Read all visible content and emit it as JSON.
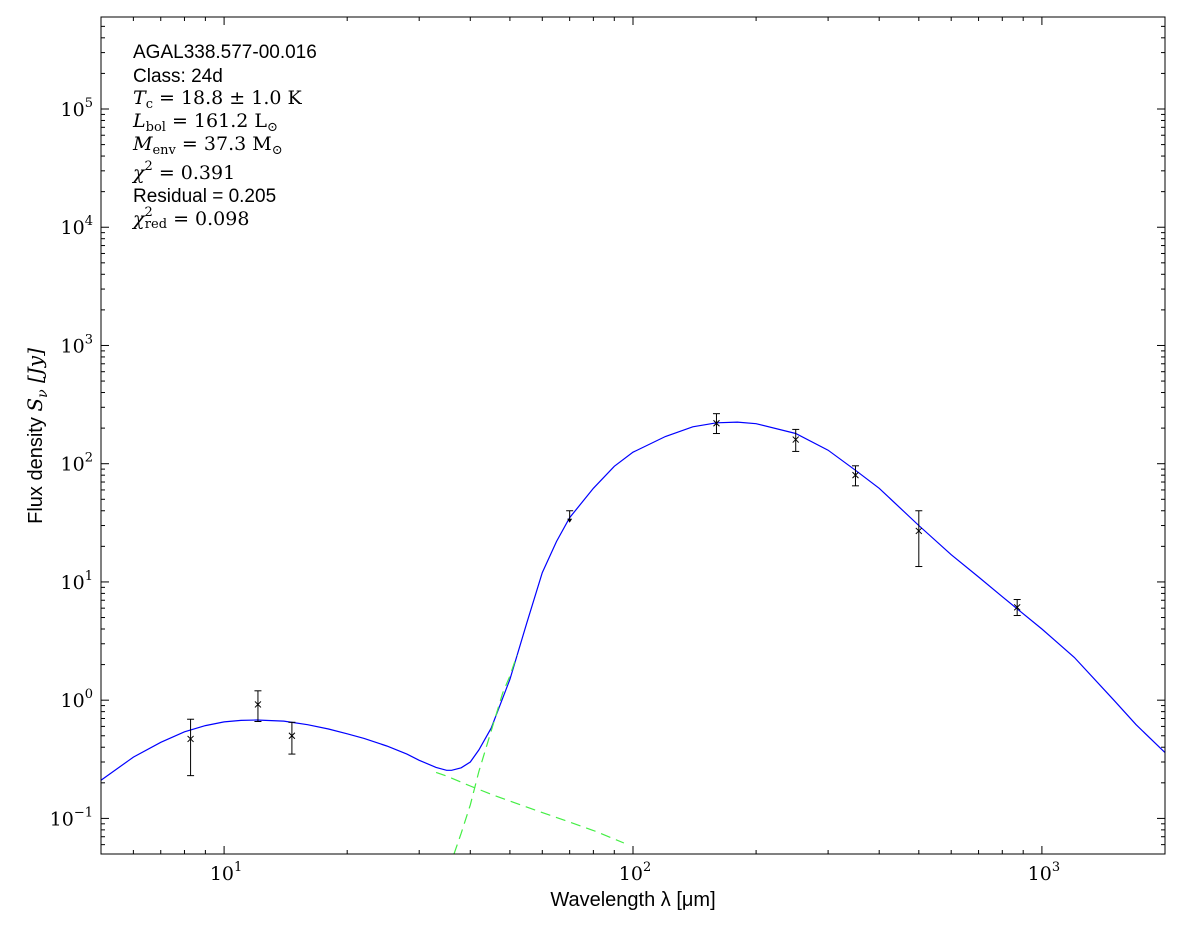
{
  "chart_data": {
    "type": "scatter",
    "xscale": "log",
    "yscale": "log",
    "xlim": [
      5,
      2000
    ],
    "ylim": [
      0.05,
      600000
    ],
    "xlabel": "Wavelength λ [μm]",
    "ylabel_prefix": "Flux density ",
    "ylabel_var": "S",
    "ylabel_sub": "ν",
    "ylabel_unit": " [Jy]",
    "x_ticks": [
      {
        "value": 10,
        "base": "10",
        "exp": "1"
      },
      {
        "value": 100,
        "base": "10",
        "exp": "2"
      },
      {
        "value": 1000,
        "base": "10",
        "exp": "3"
      }
    ],
    "y_ticks": [
      {
        "value": 0.1,
        "base": "10",
        "exp": "−1"
      },
      {
        "value": 1,
        "base": "10",
        "exp": "0"
      },
      {
        "value": 10,
        "base": "10",
        "exp": "1"
      },
      {
        "value": 100,
        "base": "10",
        "exp": "2"
      },
      {
        "value": 1000,
        "base": "10",
        "exp": "3"
      },
      {
        "value": 10000,
        "base": "10",
        "exp": "4"
      },
      {
        "value": 100000,
        "base": "10",
        "exp": "5"
      }
    ],
    "annotation": {
      "source": "AGAL338.577-00.016",
      "class": "Class: 24d",
      "tc": {
        "sym": "T",
        "sub": "c",
        "text": " = 18.8 ± 1.0 K"
      },
      "lbol": {
        "sym": "L",
        "sub": "bol",
        "text": " = 161.2 L",
        "sub2": "⊙"
      },
      "menv": {
        "sym": "M",
        "sub": "env",
        "text": " = 37.3 M",
        "sub2": "⊙"
      },
      "chi2": {
        "sym": "χ",
        "sup": "2",
        "text": " = 0.391"
      },
      "residual": "Residual = 0.205",
      "chi2red": {
        "sym": "χ",
        "sup": "2",
        "sub": "red",
        "text": " = 0.098"
      }
    },
    "points": [
      {
        "x": 8.28,
        "y": 0.47,
        "ylo": 0.23,
        "yhi": 0.69
      },
      {
        "x": 12.1,
        "y": 0.92,
        "ylo": 0.66,
        "yhi": 1.2
      },
      {
        "x": 14.65,
        "y": 0.5,
        "ylo": 0.35,
        "yhi": 0.65
      },
      {
        "x": 160,
        "y": 220,
        "ylo": 180,
        "yhi": 265
      },
      {
        "x": 250,
        "y": 160,
        "ylo": 127,
        "yhi": 195
      },
      {
        "x": 350,
        "y": 80,
        "ylo": 65,
        "yhi": 96
      },
      {
        "x": 500,
        "y": 27,
        "ylo": 13.5,
        "yhi": 40
      },
      {
        "x": 870,
        "y": 6.1,
        "ylo": 5.2,
        "yhi": 7.1
      }
    ],
    "upper_limits": [
      {
        "x": 70,
        "y": 40
      }
    ],
    "series": [
      {
        "type": "line",
        "color": "#0000ff",
        "dash": "solid",
        "points": [
          [
            5,
            0.21
          ],
          [
            6,
            0.33
          ],
          [
            7,
            0.44
          ],
          [
            8,
            0.54
          ],
          [
            9,
            0.61
          ],
          [
            10,
            0.655
          ],
          [
            11,
            0.675
          ],
          [
            12,
            0.68
          ],
          [
            14,
            0.665
          ],
          [
            16,
            0.62
          ],
          [
            18,
            0.57
          ],
          [
            20,
            0.52
          ],
          [
            22,
            0.475
          ],
          [
            25,
            0.41
          ],
          [
            28,
            0.35
          ],
          [
            30,
            0.31
          ],
          [
            33,
            0.27
          ],
          [
            35,
            0.255
          ],
          [
            36,
            0.255
          ],
          [
            38,
            0.268
          ],
          [
            40,
            0.3
          ],
          [
            42,
            0.38
          ],
          [
            45,
            0.58
          ],
          [
            50,
            1.5
          ],
          [
            55,
            4.5
          ],
          [
            60,
            12
          ],
          [
            65,
            22
          ],
          [
            70,
            35
          ],
          [
            80,
            62
          ],
          [
            90,
            95
          ],
          [
            100,
            125
          ],
          [
            120,
            170
          ],
          [
            140,
            205
          ],
          [
            160,
            222
          ],
          [
            180,
            225
          ],
          [
            200,
            218
          ],
          [
            250,
            180
          ],
          [
            300,
            130
          ],
          [
            350,
            88
          ],
          [
            400,
            62
          ],
          [
            500,
            30
          ],
          [
            600,
            17
          ],
          [
            700,
            11
          ],
          [
            800,
            7.5
          ],
          [
            1000,
            4.0
          ],
          [
            1200,
            2.3
          ],
          [
            1500,
            1.0
          ],
          [
            1700,
            0.62
          ],
          [
            2000,
            0.36
          ]
        ]
      },
      {
        "type": "line",
        "color": "#44ee44",
        "dash": "dashed",
        "points": [
          [
            33,
            0.245
          ],
          [
            35,
            0.228
          ],
          [
            40,
            0.188
          ],
          [
            45,
            0.16
          ],
          [
            50,
            0.14
          ],
          [
            60,
            0.112
          ],
          [
            70,
            0.093
          ],
          [
            80,
            0.079
          ],
          [
            90,
            0.067
          ],
          [
            95,
            0.062
          ]
        ]
      },
      {
        "type": "line",
        "color": "#44ee44",
        "dash": "dashed",
        "points": [
          [
            36.5,
            0.05
          ],
          [
            38,
            0.075
          ],
          [
            40,
            0.13
          ],
          [
            42,
            0.25
          ],
          [
            45,
            0.55
          ],
          [
            48,
            1.15
          ],
          [
            50,
            1.6
          ],
          [
            52,
            2.4
          ]
        ]
      }
    ]
  }
}
